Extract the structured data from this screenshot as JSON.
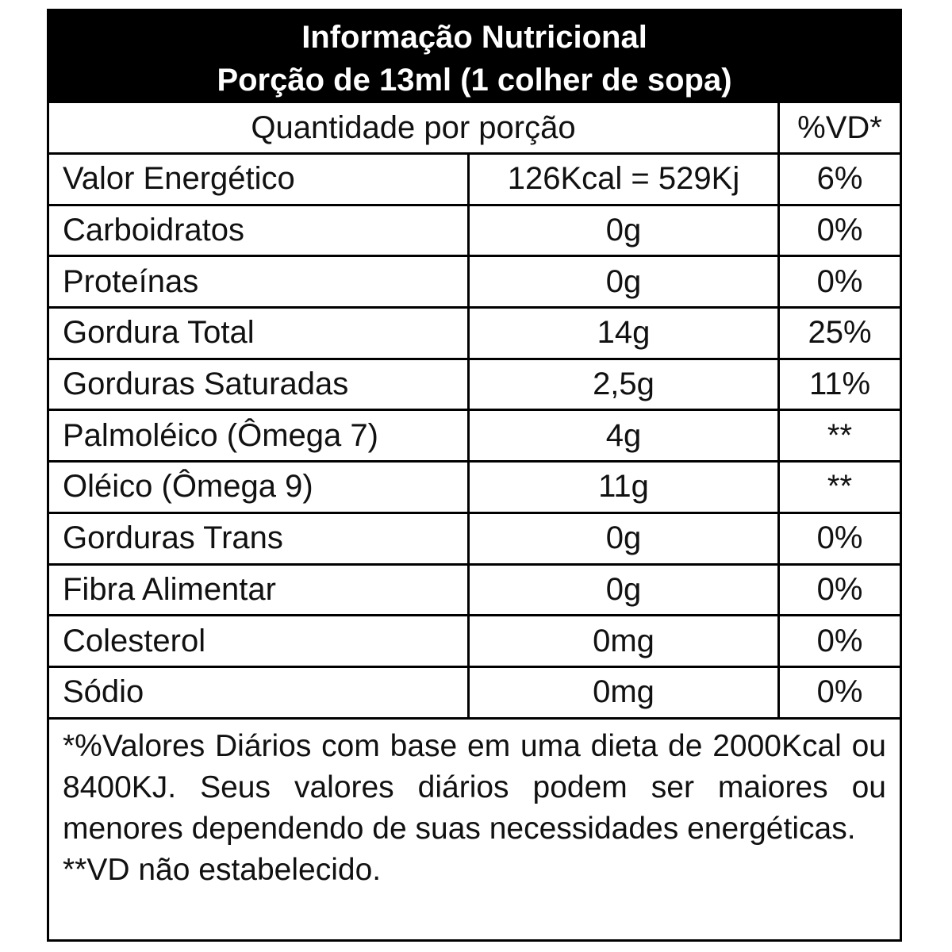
{
  "header": {
    "title": "Informação Nutricional",
    "subtitle": "Porção de 13ml (1 colher de sopa)"
  },
  "table": {
    "columns": [
      "Quantidade por porção",
      "%VD*"
    ],
    "rows": [
      [
        "Valor Energético",
        "126Kcal = 529Kj",
        "6%"
      ],
      [
        "Carboidratos",
        "0g",
        "0%"
      ],
      [
        "Proteínas",
        "0g",
        "0%"
      ],
      [
        "Gordura Total",
        "14g",
        "25%"
      ],
      [
        "Gorduras Saturadas",
        "2,5g",
        "11%"
      ],
      [
        "Palmoléico (Ômega 7)",
        "4g",
        "**"
      ],
      [
        "Oléico (Ômega 9)",
        "11g",
        "**"
      ],
      [
        "Gorduras Trans",
        "0g",
        "0%"
      ],
      [
        "Fibra Alimentar",
        "0g",
        "0%"
      ],
      [
        "Colesterol",
        "0mg",
        "0%"
      ],
      [
        "Sódio",
        "0mg",
        "0%"
      ]
    ]
  },
  "footnote": {
    "note": "*%Valores Diários com base em uma dieta de 2000Kcal ou 8400KJ. Seus valores diários podem ser maiores ou menores dependendo de suas necessidades energéticas.",
    "note2": "**VD não estabelecido."
  }
}
